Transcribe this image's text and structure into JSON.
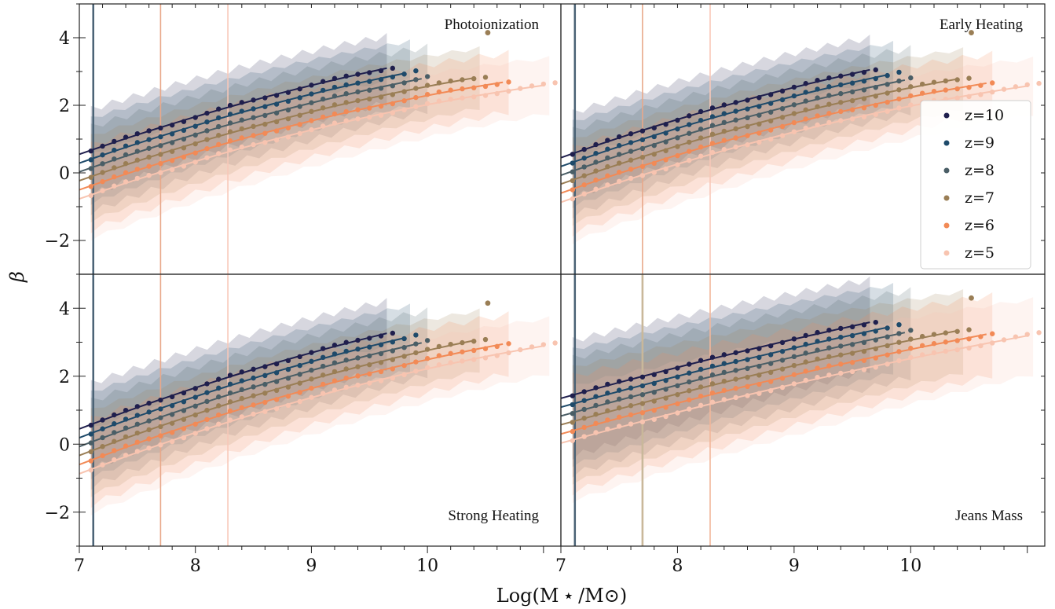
{
  "chart_data": {
    "type": "scatter",
    "xlabel": "Log(M ⋆ /M⊙)",
    "ylabel": "β",
    "xlim": [
      7,
      11.15
    ],
    "ylim": [
      -3,
      5
    ],
    "xticks": [
      "7",
      "8",
      "9",
      "10"
    ],
    "yticks": [
      "−2",
      "0",
      "2",
      "4"
    ],
    "legend": {
      "position": "right",
      "entries": [
        "z=10",
        "z=9",
        "z=8",
        "z=7",
        "z=6",
        "z=5"
      ]
    },
    "redshifts": [
      {
        "name": "z=10",
        "color": "#1f1f4d",
        "offset": 0.0,
        "xmin": 7.1,
        "xmax": 9.75,
        "fill": [
          7.1,
          9.65
        ],
        "mb": [
          0.75,
          0.0
        ]
      },
      {
        "name": "z=9",
        "color": "#1e4a6a",
        "offset": -0.26,
        "xmin": 7.1,
        "xmax": 9.9,
        "fill": [
          7.1,
          9.85
        ],
        "mb": [
          0.75,
          0.0
        ]
      },
      {
        "name": "z=8",
        "color": "#4a5e66",
        "offset": -0.52,
        "xmin": 7.1,
        "xmax": 10.05,
        "fill": [
          7.1,
          10.0
        ],
        "mb": [
          0.75,
          0.0
        ]
      },
      {
        "name": "z=7",
        "color": "#9a7e55",
        "offset": -0.78,
        "xmin": 7.1,
        "xmax": 10.5,
        "fill": [
          7.1,
          10.45
        ],
        "mb": [
          0.75,
          0.0
        ]
      },
      {
        "name": "z=6",
        "color": "#f28a56",
        "offset": -1.05,
        "xmin": 7.1,
        "xmax": 10.75,
        "fill": [
          7.1,
          10.7
        ],
        "mb": [
          0.75,
          0.0
        ]
      },
      {
        "name": "z=5",
        "color": "#f8c4b0",
        "offset": -1.32,
        "xmin": 7.1,
        "xmax": 11.1,
        "fill": [
          7.1,
          11.05
        ],
        "mb": [
          0.75,
          0.0
        ]
      }
    ],
    "panels": [
      {
        "title": "Photoionization",
        "title_pos": "top-right",
        "legend": false,
        "vlines": [
          {
            "x": 7.12,
            "color": "#4a6275",
            "width": 2.5
          },
          {
            "x": 7.7,
            "color": "#e8a88a",
            "width": 1.6
          },
          {
            "x": 8.28,
            "color": "#f8c8b8",
            "width": 1.6
          }
        ],
        "base": 0.55,
        "slope": 1.2,
        "curv": -0.09,
        "scatter_hi": 1.2,
        "scatter_lo": 1.3
      },
      {
        "title": "Early Heating",
        "title_pos": "top-right",
        "legend": true,
        "vlines": [
          {
            "x": 7.12,
            "color": "#4a6275",
            "width": 2.5
          },
          {
            "x": 7.7,
            "color": "#e8a88a",
            "width": 1.6
          },
          {
            "x": 8.28,
            "color": "#f8c8b8",
            "width": 1.6
          }
        ],
        "base": 0.45,
        "slope": 1.22,
        "curv": -0.09,
        "scatter_hi": 1.2,
        "scatter_lo": 1.3
      },
      {
        "title": "Strong Heating",
        "title_pos": "bottom-right",
        "legend": false,
        "vlines": [
          {
            "x": 7.12,
            "color": "#4a6275",
            "width": 2.5
          },
          {
            "x": 7.7,
            "color": "#e8a88a",
            "width": 1.6
          },
          {
            "x": 8.28,
            "color": "#f8c8b8",
            "width": 1.6
          }
        ],
        "base": 0.45,
        "slope": 1.3,
        "curv": -0.09,
        "scatter_hi": 1.2,
        "scatter_lo": 1.3
      },
      {
        "title": "Jeans Mass",
        "title_pos": "bottom-right",
        "legend": false,
        "vlines": [
          {
            "x": 7.12,
            "color": "#4a6275",
            "width": 2.5
          },
          {
            "x": 7.7,
            "color": "#c9b89a",
            "width": 2.6
          },
          {
            "x": 8.28,
            "color": "#f2b69a",
            "width": 1.6
          }
        ],
        "base": 1.35,
        "slope": 0.95,
        "curv": -0.04,
        "scatter_hi": 1.6,
        "scatter_lo": 1.8
      }
    ],
    "outliers": [
      {
        "panel": 0,
        "x": 10.52,
        "y": 4.15,
        "color": "#9a7e55"
      },
      {
        "panel": 1,
        "x": 10.52,
        "y": 4.15,
        "color": "#9a7e55"
      },
      {
        "panel": 2,
        "x": 10.52,
        "y": 4.15,
        "color": "#9a7e55"
      },
      {
        "panel": 3,
        "x": 10.52,
        "y": 4.3,
        "color": "#9a7e55"
      }
    ]
  }
}
